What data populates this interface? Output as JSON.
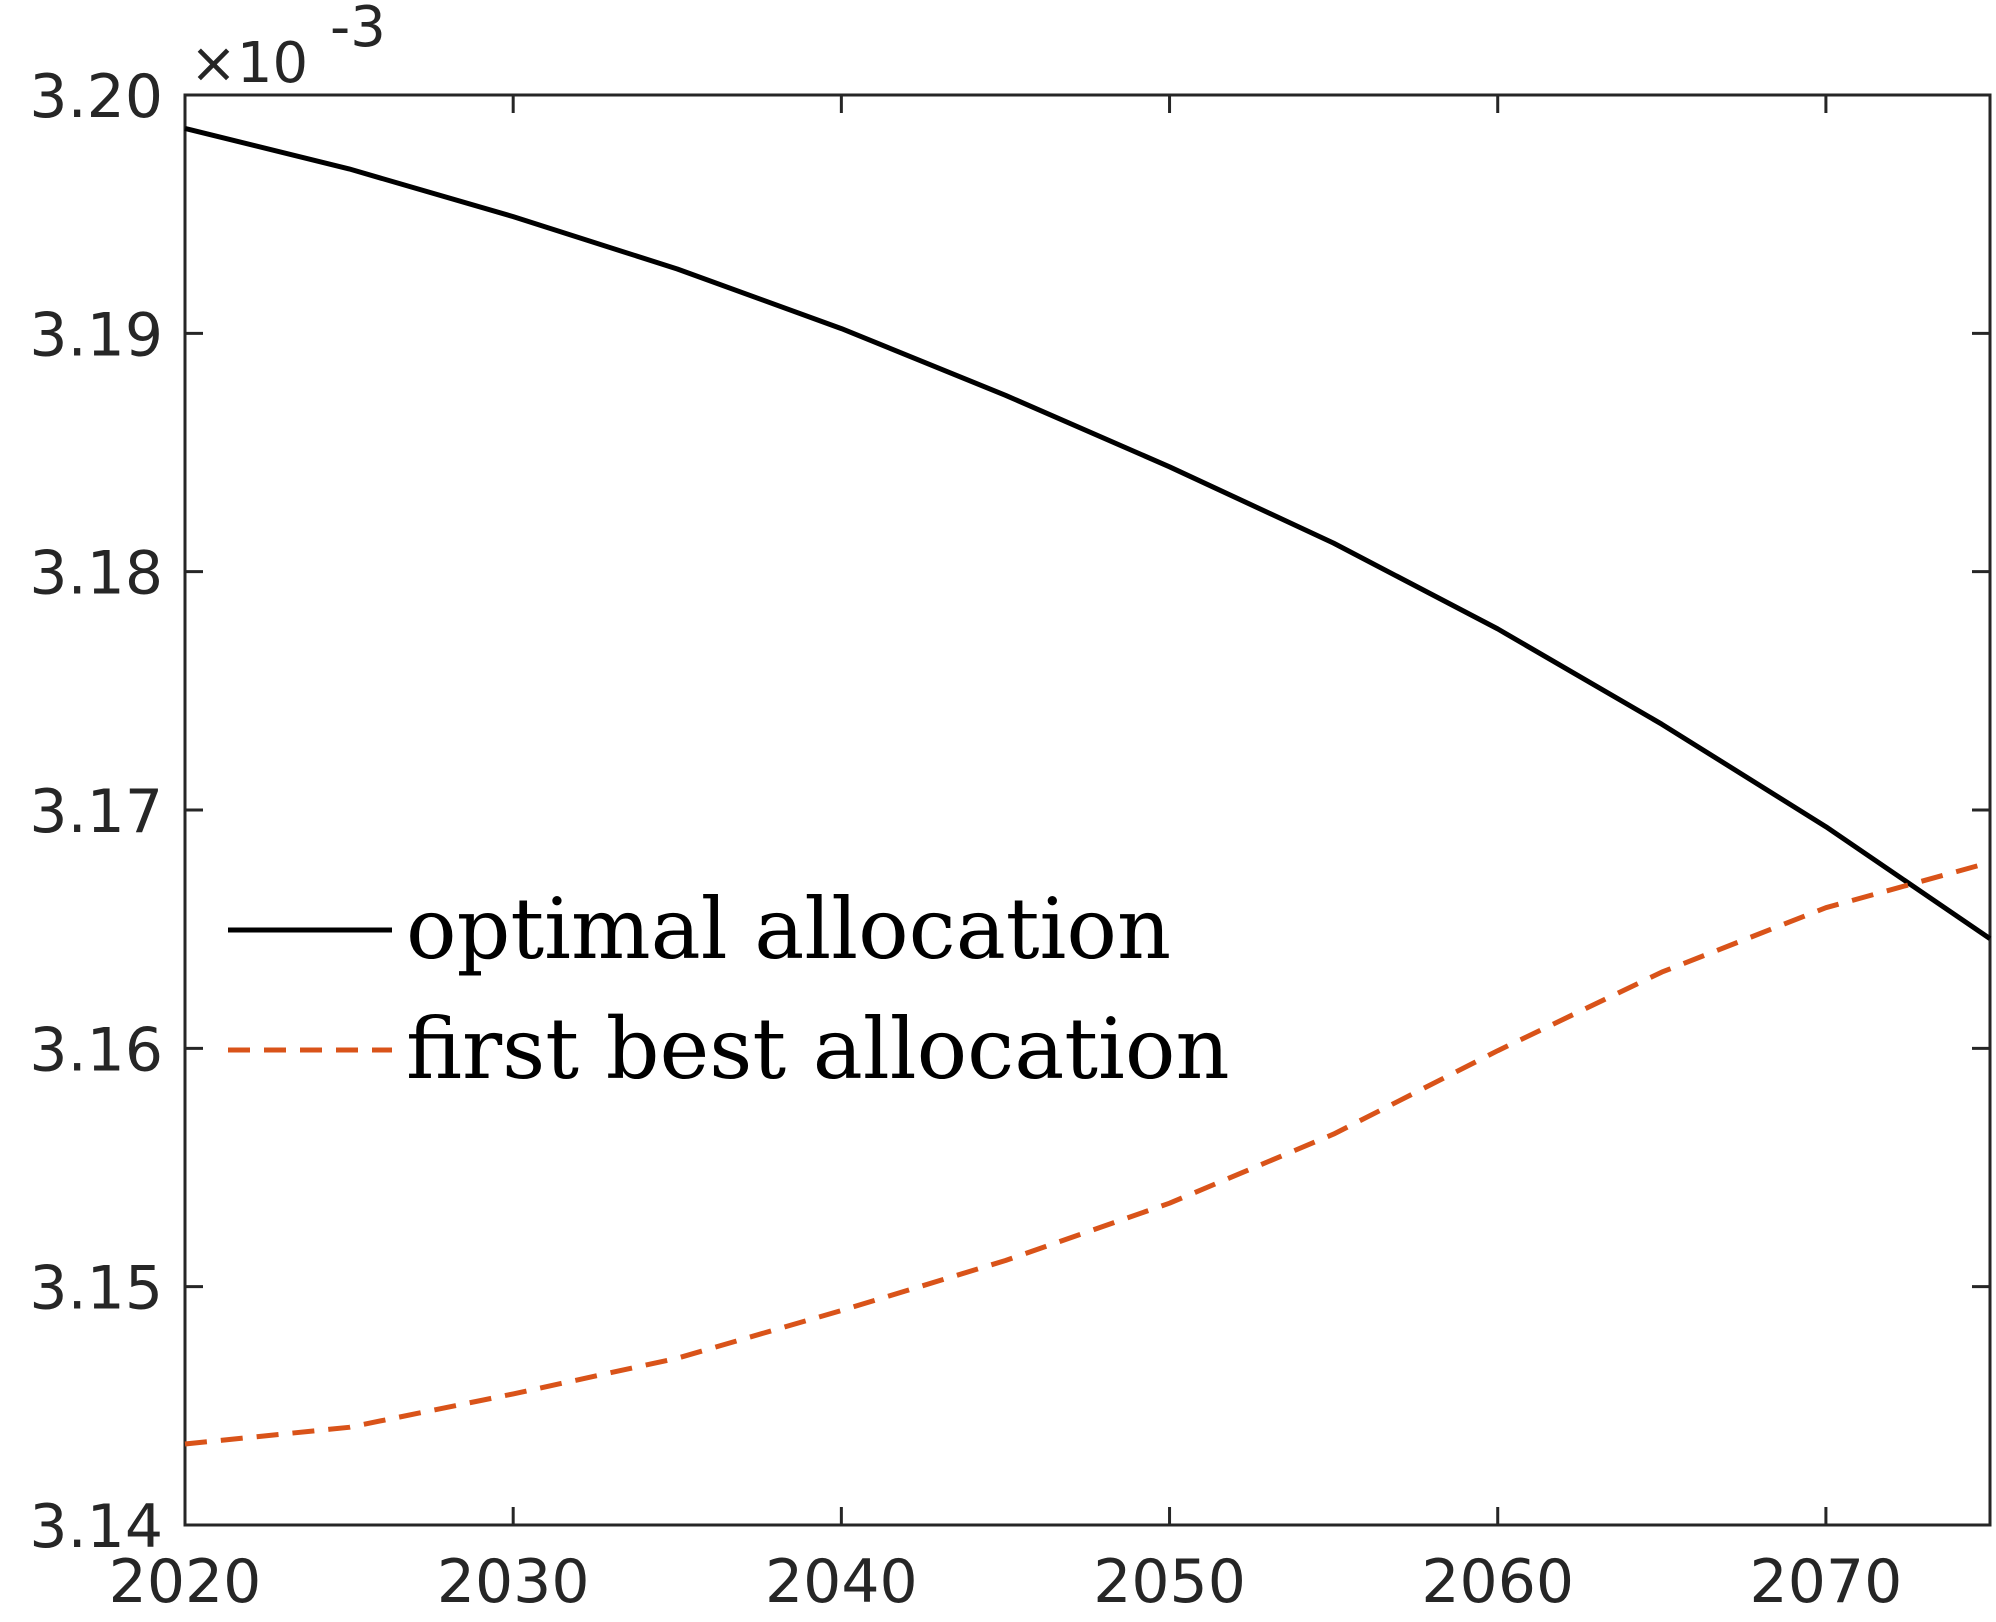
{
  "chart_data": {
    "type": "line",
    "exponent_label": "×10",
    "exponent_power": "-3",
    "xlim": [
      2020,
      2075
    ],
    "ylim": [
      3.14,
      3.2
    ],
    "x_ticks": [
      "2020",
      "2030",
      "2040",
      "2050",
      "2060",
      "2070"
    ],
    "y_ticks": [
      "3.14",
      "3.15",
      "3.16",
      "3.17",
      "3.18",
      "3.19",
      "3.20"
    ],
    "grid": false,
    "legend_position": "center-left",
    "colors": {
      "axes": "#262626",
      "optimal": "#000000",
      "first_best": "#d95319"
    },
    "series": [
      {
        "name": "optimal allocation",
        "style": "solid",
        "x": [
          2020,
          2025,
          2030,
          2035,
          2040,
          2045,
          2050,
          2055,
          2060,
          2065,
          2070,
          2075
        ],
        "y": [
          3.1986,
          3.1969,
          3.1949,
          3.1927,
          3.1902,
          3.1874,
          3.1844,
          3.1812,
          3.1776,
          3.1736,
          3.1693,
          3.1646
        ]
      },
      {
        "name": "first best allocation",
        "style": "dashed",
        "x": [
          2020,
          2025,
          2030,
          2035,
          2040,
          2045,
          2050,
          2055,
          2060,
          2065,
          2070,
          2075
        ],
        "y": [
          3.1434,
          3.1441,
          3.1455,
          3.147,
          3.149,
          3.1511,
          3.1535,
          3.1564,
          3.1599,
          3.1632,
          3.1659,
          3.1678
        ]
      }
    ]
  }
}
